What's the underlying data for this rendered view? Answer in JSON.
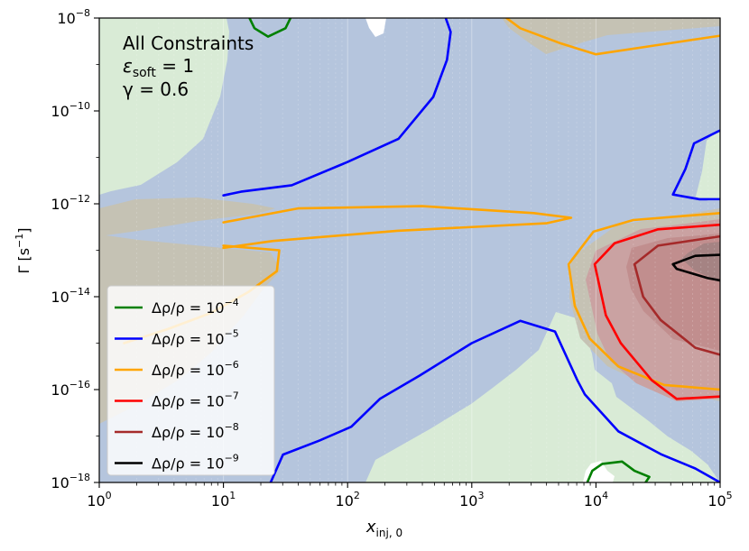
{
  "chart_data": {
    "type": "contour",
    "xlabel": "x",
    "xlabel_sub": "inj, 0",
    "ylabel": "Γ [s",
    "ylabel_sup": "−1",
    "ylabel_close": "]",
    "xscale": "log",
    "yscale": "log",
    "xlim": [
      1,
      100000
    ],
    "ylim": [
      1e-18,
      1e-08
    ],
    "x_ticks": [
      {
        "base": "10",
        "exp": "0"
      },
      {
        "base": "10",
        "exp": "1"
      },
      {
        "base": "10",
        "exp": "2"
      },
      {
        "base": "10",
        "exp": "3"
      },
      {
        "base": "10",
        "exp": "4"
      },
      {
        "base": "10",
        "exp": "5"
      }
    ],
    "y_ticks": [
      {
        "base": "10",
        "exp": "−18"
      },
      {
        "base": "10",
        "exp": "−16"
      },
      {
        "base": "10",
        "exp": "−14"
      },
      {
        "base": "10",
        "exp": "−12"
      },
      {
        "base": "10",
        "exp": "−10"
      },
      {
        "base": "10",
        "exp": "−8"
      }
    ],
    "annotations": {
      "title": "All Constraints",
      "eps_symbol": "ε",
      "eps_sub": "soft",
      "eps_value": " = 1",
      "gamma_line": "γ = 0.6"
    },
    "legend": {
      "placement": "lower-left",
      "entries": [
        {
          "prefix": "Δρ/ρ = 10",
          "exp": "−4",
          "color": "#008000"
        },
        {
          "prefix": "Δρ/ρ = 10",
          "exp": "−5",
          "color": "#0000ff"
        },
        {
          "prefix": "Δρ/ρ = 10",
          "exp": "−6",
          "color": "#ffa500"
        },
        {
          "prefix": "Δρ/ρ = 10",
          "exp": "−7",
          "color": "#ff0000"
        },
        {
          "prefix": "Δρ/ρ = 10",
          "exp": "−8",
          "color": "#a52a2a"
        },
        {
          "prefix": "Δρ/ρ = 10",
          "exp": "−9",
          "color": "#000000"
        }
      ]
    },
    "region_colors": {
      "green": "#d9ebd6",
      "blue": "#b5c5dd",
      "orange": "#c5c2b4",
      "red": "#caa2a2",
      "brown": "#c18e8e",
      "black": "#a58383",
      "white": "#ffffff"
    },
    "contours": [
      {
        "level": "1e-4",
        "color": "#008000",
        "points": [
          [
            1.21,
            -8.0
          ],
          [
            1.25,
            -8.22
          ],
          [
            1.36,
            -8.4
          ],
          [
            1.5,
            -8.22
          ],
          [
            1.54,
            -8.0
          ]
        ]
      },
      {
        "level": "1e-4",
        "color": "#008000",
        "points": [
          [
            3.93,
            -18.0
          ],
          [
            3.97,
            -17.75
          ],
          [
            4.05,
            -17.6
          ],
          [
            4.21,
            -17.55
          ],
          [
            4.31,
            -17.75
          ],
          [
            4.43,
            -17.88
          ],
          [
            4.4,
            -18.0
          ]
        ]
      },
      {
        "level": "1e-5",
        "color": "#0000ff",
        "points": [
          [
            1.0,
            -11.82
          ],
          [
            1.14,
            -11.74
          ],
          [
            1.55,
            -11.6
          ],
          [
            2.0,
            -11.1
          ],
          [
            2.41,
            -10.6
          ],
          [
            2.69,
            -9.7
          ],
          [
            2.8,
            -8.9
          ],
          [
            2.83,
            -8.3
          ],
          [
            2.79,
            -8.0
          ]
        ]
      },
      {
        "level": "1e-5",
        "color": "#0000ff",
        "points": [
          [
            5.0,
            -10.42
          ],
          [
            4.79,
            -10.7
          ],
          [
            4.72,
            -11.25
          ],
          [
            4.62,
            -11.8
          ],
          [
            4.83,
            -11.9
          ],
          [
            5.0,
            -11.9
          ]
        ]
      },
      {
        "level": "1e-5",
        "color": "#0000ff",
        "points": [
          [
            1.38,
            -18.0
          ],
          [
            1.48,
            -17.4
          ],
          [
            1.77,
            -17.1
          ],
          [
            2.03,
            -16.8
          ],
          [
            2.26,
            -16.2
          ],
          [
            2.58,
            -15.7
          ],
          [
            3.0,
            -15.0
          ],
          [
            3.39,
            -14.52
          ],
          [
            3.67,
            -14.75
          ],
          [
            3.85,
            -15.8
          ],
          [
            3.91,
            -16.1
          ],
          [
            4.18,
            -16.9
          ],
          [
            4.53,
            -17.4
          ],
          [
            4.8,
            -17.7
          ],
          [
            5.0,
            -18.0
          ]
        ]
      },
      {
        "level": "1e-6",
        "color": "#ffa500",
        "points": [
          [
            3.28,
            -8.0
          ],
          [
            3.39,
            -8.22
          ],
          [
            3.72,
            -8.55
          ],
          [
            4.0,
            -8.78
          ],
          [
            4.5,
            -8.58
          ],
          [
            5.0,
            -8.38
          ]
        ]
      },
      {
        "level": "1e-6",
        "color": "#ffa500",
        "points": [
          [
            1.0,
            -12.4
          ],
          [
            1.6,
            -12.1
          ],
          [
            2.6,
            -12.05
          ],
          [
            3.5,
            -12.2
          ],
          [
            3.8,
            -12.3
          ],
          [
            3.6,
            -12.42
          ],
          [
            2.4,
            -12.58
          ],
          [
            1.4,
            -12.8
          ],
          [
            1.0,
            -12.95
          ]
        ]
      },
      {
        "level": "1e-6",
        "color": "#ffa500",
        "points": [
          [
            1.0,
            -12.9
          ],
          [
            1.45,
            -13.0
          ],
          [
            1.43,
            -13.45
          ],
          [
            1.2,
            -13.9
          ],
          [
            0.9,
            -14.35
          ],
          [
            0.55,
            -14.7
          ],
          [
            0.2,
            -15.0
          ]
        ]
      },
      {
        "level": "1e-6",
        "color": "#ffa500",
        "points": [
          [
            5.0,
            -12.2
          ],
          [
            4.3,
            -12.35
          ],
          [
            3.98,
            -12.6
          ],
          [
            3.78,
            -13.3
          ],
          [
            3.83,
            -14.2
          ],
          [
            3.95,
            -14.9
          ],
          [
            4.18,
            -15.5
          ],
          [
            4.55,
            -15.9
          ],
          [
            5.0,
            -16.0
          ]
        ]
      },
      {
        "level": "1e-7",
        "color": "#ff0000",
        "points": [
          [
            5.0,
            -12.45
          ],
          [
            4.5,
            -12.55
          ],
          [
            4.15,
            -12.85
          ],
          [
            3.99,
            -13.3
          ],
          [
            4.08,
            -14.4
          ],
          [
            4.2,
            -15.0
          ],
          [
            4.45,
            -15.8
          ],
          [
            4.65,
            -16.2
          ],
          [
            5.0,
            -16.15
          ]
        ]
      },
      {
        "level": "1e-8",
        "color": "#a52a2a",
        "points": [
          [
            5.0,
            -12.7
          ],
          [
            4.5,
            -12.9
          ],
          [
            4.31,
            -13.3
          ],
          [
            4.38,
            -14.0
          ],
          [
            4.52,
            -14.5
          ],
          [
            4.8,
            -15.1
          ],
          [
            5.0,
            -15.25
          ]
        ]
      },
      {
        "level": "1e-9",
        "color": "#000000",
        "points": [
          [
            5.0,
            -13.1
          ],
          [
            4.8,
            -13.12
          ],
          [
            4.62,
            -13.3
          ],
          [
            4.65,
            -13.4
          ],
          [
            4.9,
            -13.6
          ],
          [
            5.0,
            -13.65
          ]
        ]
      }
    ]
  }
}
